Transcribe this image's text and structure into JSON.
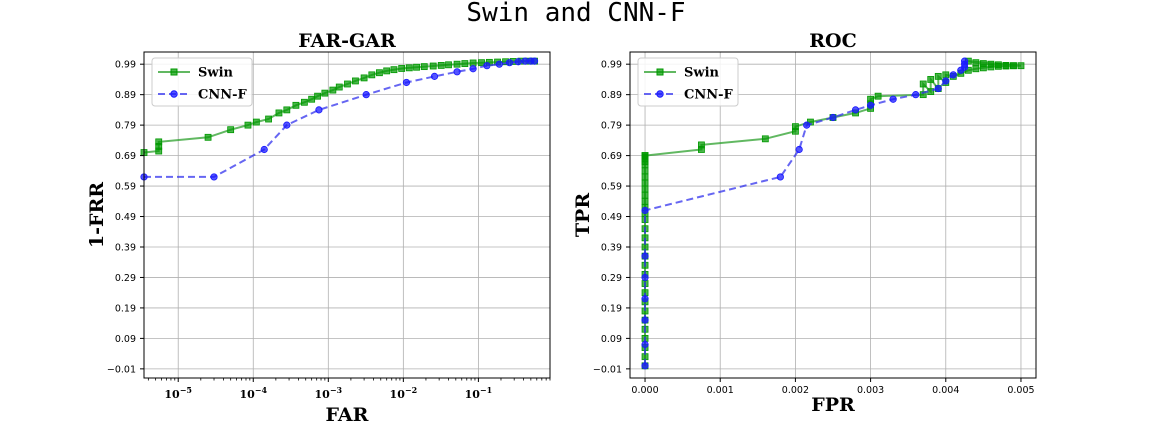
{
  "figure": {
    "title": "Swin and CNN-F"
  },
  "colors": {
    "swin": "#2ca02c",
    "swin_marker": "#009900",
    "cnnf": "#3333ee",
    "cnnf_marker": "#1a1aff"
  },
  "chart_data": [
    {
      "type": "line",
      "title": "FAR-GAR",
      "xlabel": "FAR",
      "ylabel": "1-FRR",
      "xscale": "log",
      "xlim": [
        3.5e-06,
        0.9
      ],
      "ylim": [
        -0.04,
        1.03
      ],
      "x_ticks": [
        1e-05,
        0.0001,
        0.001,
        0.01,
        0.1
      ],
      "x_tick_labels": [
        {
          "base": "10",
          "exp": "−5"
        },
        {
          "base": "10",
          "exp": "−4"
        },
        {
          "base": "10",
          "exp": "−3"
        },
        {
          "base": "10",
          "exp": "−2"
        },
        {
          "base": "10",
          "exp": "−1"
        }
      ],
      "y_ticks": [
        -0.01,
        0.09,
        0.19,
        0.29,
        0.39,
        0.49,
        0.59,
        0.69,
        0.79,
        0.89,
        0.99
      ],
      "y_tick_labels": [
        "−0.01",
        "0.09",
        "0.19",
        "0.29",
        "0.39",
        "0.49",
        "0.59",
        "0.69",
        "0.79",
        "0.89",
        "0.99"
      ],
      "grid": true,
      "legend": "top-left",
      "series": [
        {
          "name": "Swin",
          "style": "solid",
          "marker": "square",
          "x": [
            3.5e-06,
            5.5e-06,
            5.5e-06,
            5.5e-06,
            2.5e-05,
            5e-05,
            8.5e-05,
            0.00011,
            0.00016,
            0.00022,
            0.00028,
            0.00037,
            0.00048,
            0.0006,
            0.00072,
            0.0009,
            0.00115,
            0.0014,
            0.0018,
            0.0023,
            0.003,
            0.0038,
            0.0048,
            0.006,
            0.0075,
            0.0095,
            0.012,
            0.015,
            0.019,
            0.025,
            0.032,
            0.04,
            0.052,
            0.066,
            0.085,
            0.11,
            0.14,
            0.18,
            0.23,
            0.29,
            0.37,
            0.47,
            0.56
          ],
          "y": [
            0.7,
            0.705,
            0.72,
            0.735,
            0.75,
            0.775,
            0.79,
            0.8,
            0.81,
            0.83,
            0.84,
            0.855,
            0.865,
            0.875,
            0.885,
            0.895,
            0.905,
            0.915,
            0.925,
            0.935,
            0.945,
            0.955,
            0.962,
            0.968,
            0.972,
            0.976,
            0.978,
            0.98,
            0.982,
            0.984,
            0.986,
            0.988,
            0.99,
            0.992,
            0.994,
            0.995,
            0.996,
            0.997,
            0.998,
            0.999,
            1.0,
            1.0,
            1.0
          ]
        },
        {
          "name": "CNN-F",
          "style": "dashed",
          "marker": "circle",
          "x": [
            3.5e-06,
            3e-05,
            0.00014,
            0.00028,
            0.00075,
            0.0032,
            0.011,
            0.026,
            0.052,
            0.085,
            0.13,
            0.19,
            0.26,
            0.34,
            0.42,
            0.5,
            0.56
          ],
          "y": [
            0.62,
            0.62,
            0.71,
            0.79,
            0.84,
            0.89,
            0.93,
            0.95,
            0.965,
            0.975,
            0.985,
            0.99,
            0.995,
            0.998,
            1.0,
            1.0,
            1.0
          ]
        }
      ]
    },
    {
      "type": "line",
      "title": "ROC",
      "xlabel": "FPR",
      "ylabel": "TPR",
      "xscale": "linear",
      "xlim": [
        -0.0002,
        0.0052
      ],
      "ylim": [
        -0.04,
        1.03
      ],
      "x_ticks": [
        0.0,
        0.001,
        0.002,
        0.003,
        0.004,
        0.005
      ],
      "x_tick_labels": [
        "0.000",
        "0.001",
        "0.002",
        "0.003",
        "0.004",
        "0.005"
      ],
      "y_ticks": [
        -0.01,
        0.09,
        0.19,
        0.29,
        0.39,
        0.49,
        0.59,
        0.69,
        0.79,
        0.89,
        0.99
      ],
      "y_tick_labels": [
        "−0.01",
        "0.09",
        "0.19",
        "0.29",
        "0.39",
        "0.49",
        "0.59",
        "0.69",
        "0.79",
        "0.89",
        "0.99"
      ],
      "grid": true,
      "legend": "top-left",
      "series": [
        {
          "name": "Swin",
          "style": "solid",
          "marker": "square",
          "x": [
            0,
            0,
            0,
            0,
            0,
            0,
            0,
            0,
            0,
            0,
            0,
            0,
            0,
            0,
            0,
            0,
            0,
            0,
            0,
            0,
            0,
            0,
            0,
            0,
            0,
            0,
            0,
            0,
            0,
            0,
            0,
            0.00075,
            0.00075,
            0.0016,
            0.002,
            0.002,
            0.0022,
            0.0025,
            0.0028,
            0.003,
            0.003,
            0.003,
            0.0031,
            0.0037,
            0.0037,
            0.0038,
            0.0038,
            0.0039,
            0.0039,
            0.004,
            0.004,
            0.0041,
            0.0042,
            0.0043,
            0.0044,
            0.0045,
            0.0046,
            0.0047,
            0.0048,
            0.0049,
            0.005,
            0.0043,
            0.0044,
            0.0045,
            0.0046,
            0.0047,
            0.0048,
            0.0049
          ],
          "y": [
            0.0,
            0.03,
            0.06,
            0.09,
            0.12,
            0.15,
            0.18,
            0.21,
            0.24,
            0.27,
            0.3,
            0.33,
            0.36,
            0.39,
            0.42,
            0.45,
            0.48,
            0.5,
            0.52,
            0.54,
            0.56,
            0.58,
            0.6,
            0.62,
            0.64,
            0.66,
            0.67,
            0.68,
            0.685,
            0.69,
            0.69,
            0.71,
            0.725,
            0.745,
            0.77,
            0.785,
            0.8,
            0.815,
            0.83,
            0.845,
            0.86,
            0.875,
            0.885,
            0.89,
            0.925,
            0.9,
            0.94,
            0.91,
            0.95,
            0.93,
            0.955,
            0.95,
            0.96,
            0.97,
            0.975,
            0.978,
            0.981,
            0.983,
            0.984,
            0.985,
            0.985,
            1.0,
            0.995,
            0.992,
            0.99,
            0.988,
            0.986,
            0.985
          ]
        },
        {
          "name": "CNN-F",
          "style": "dashed",
          "marker": "circle",
          "x": [
            0,
            0,
            0,
            0,
            0,
            0,
            0,
            0.0018,
            0.00205,
            0.00215,
            0.0025,
            0.0028,
            0.003,
            0.0033,
            0.0036,
            0.0039,
            0.004,
            0.0041,
            0.0042,
            0.00425,
            0.00425,
            0.00425
          ],
          "y": [
            0.0,
            0.07,
            0.15,
            0.22,
            0.29,
            0.36,
            0.51,
            0.62,
            0.71,
            0.79,
            0.815,
            0.84,
            0.855,
            0.875,
            0.89,
            0.91,
            0.935,
            0.955,
            0.97,
            0.98,
            0.99,
            1.0
          ]
        }
      ]
    }
  ]
}
